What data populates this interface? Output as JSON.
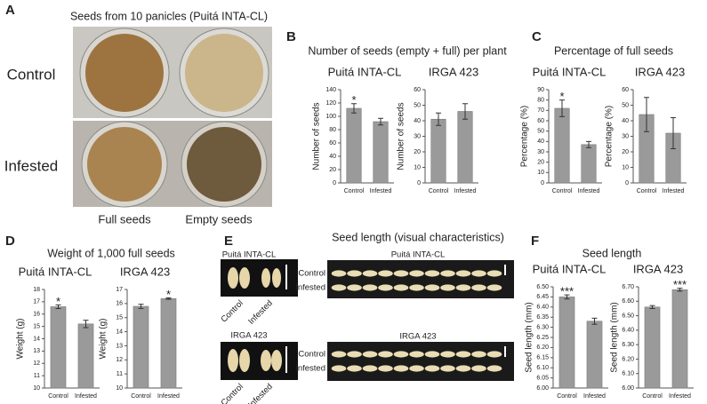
{
  "figure": {
    "panel_a": {
      "letter": "A",
      "title": "Seeds from 10 panicles (Puitá INTA-CL)",
      "rows": [
        "Control",
        "Infested"
      ],
      "columns": [
        "Full seeds",
        "Empty seeds"
      ]
    },
    "panel_b": {
      "letter": "B",
      "title": "Number of seeds (empty + full) per plant"
    },
    "panel_c": {
      "letter": "C",
      "title": "Percentage of full seeds"
    },
    "panel_d": {
      "letter": "D",
      "title": "Weight of 1,000 full seeds"
    },
    "panel_e": {
      "letter": "E",
      "title": "Seed length (visual characteristics)",
      "photos": [
        {
          "title": "Puitá INTA-CL",
          "rows": [
            "Control",
            "Infested"
          ],
          "small_labels": [
            "Control",
            "Infested"
          ]
        },
        {
          "title": "IRGA 423",
          "rows": [
            "Control",
            "Infested"
          ],
          "small_labels": [
            "Control",
            "Infested"
          ]
        }
      ]
    },
    "panel_f": {
      "letter": "F",
      "title": "Seed length"
    }
  },
  "chart_data": [
    {
      "type": "bar",
      "title": "Puitá INTA-CL",
      "ylabel": "Number of seeds",
      "categories": [
        "Control",
        "Infested"
      ],
      "values": [
        112,
        92
      ],
      "errors": [
        7,
        5
      ],
      "stars": [
        "*",
        null
      ],
      "color": "#9a9a9a",
      "ylim": [
        0,
        140
      ],
      "yticks": [
        0,
        20,
        40,
        60,
        80,
        100,
        120,
        140
      ]
    },
    {
      "type": "bar",
      "title": "IRGA 423",
      "ylabel": "Number of seeds",
      "categories": [
        "Control",
        "Infested"
      ],
      "values": [
        41,
        46
      ],
      "errors": [
        4,
        5
      ],
      "stars": [
        null,
        null
      ],
      "color": "#9a9a9a",
      "ylim": [
        0,
        60
      ],
      "yticks": [
        0,
        10,
        20,
        30,
        40,
        50,
        60
      ]
    },
    {
      "type": "bar",
      "title": "Puitá INTA-CL",
      "ylabel": "Percentage (%)",
      "categories": [
        "Control",
        "Infested"
      ],
      "values": [
        72,
        37
      ],
      "errors": [
        8,
        3
      ],
      "stars": [
        "*",
        null
      ],
      "color": "#9a9a9a",
      "ylim": [
        0,
        90
      ],
      "yticks": [
        0,
        10,
        20,
        30,
        40,
        50,
        60,
        70,
        80,
        90
      ]
    },
    {
      "type": "bar",
      "title": "IRGA 423",
      "ylabel": "Percentage (%)",
      "categories": [
        "Control",
        "Infested"
      ],
      "values": [
        44,
        32
      ],
      "errors": [
        11,
        10
      ],
      "stars": [
        null,
        null
      ],
      "color": "#9a9a9a",
      "ylim": [
        0,
        60
      ],
      "yticks": [
        0,
        10,
        20,
        30,
        40,
        50,
        60
      ]
    },
    {
      "type": "bar",
      "title": "Puitá INTA-CL",
      "ylabel": "Weight (g)",
      "categories": [
        "Control",
        "Infested"
      ],
      "values": [
        16.6,
        15.2
      ],
      "errors": [
        0.15,
        0.3
      ],
      "stars": [
        "*",
        null
      ],
      "color": "#9a9a9a",
      "ylim": [
        10,
        18
      ],
      "yticks": [
        10,
        11,
        12,
        13,
        14,
        15,
        16,
        17,
        18
      ]
    },
    {
      "type": "bar",
      "title": "IRGA 423",
      "ylabel": "Weight (g)",
      "categories": [
        "Control",
        "Infested"
      ],
      "values": [
        15.8,
        16.35
      ],
      "errors": [
        0.15,
        0.05
      ],
      "stars": [
        null,
        "*"
      ],
      "color": "#9a9a9a",
      "ylim": [
        10,
        17
      ],
      "yticks": [
        10,
        11,
        12,
        13,
        14,
        15,
        16,
        17
      ]
    },
    {
      "type": "bar",
      "title": "Puitá INTA-CL",
      "ylabel": "Seed length (mm)",
      "categories": [
        "Control",
        "Infested"
      ],
      "values": [
        6.45,
        6.33
      ],
      "errors": [
        0.01,
        0.015
      ],
      "stars": [
        "***",
        null
      ],
      "color": "#9a9a9a",
      "ylim": [
        6,
        6.5
      ],
      "yticks": [
        {
          "value": 6,
          "label": "6.00"
        },
        6.05,
        {
          "value": 6.1,
          "label": "6.10"
        },
        6.15,
        {
          "value": 6.2,
          "label": "6.20"
        },
        6.25,
        {
          "value": 6.3,
          "label": "6.30"
        },
        6.35,
        {
          "value": 6.4,
          "label": "6.40"
        },
        6.45,
        {
          "value": 6.5,
          "label": "6.50"
        }
      ]
    },
    {
      "type": "bar",
      "title": "IRGA 423",
      "ylabel": "Seed length (mm)",
      "categories": [
        "Control",
        "Infested"
      ],
      "values": [
        6.56,
        6.68
      ],
      "errors": [
        0.01,
        0.01
      ],
      "stars": [
        null,
        "***"
      ],
      "color": "#9a9a9a",
      "ylim": [
        6,
        6.7
      ],
      "yticks": [
        {
          "value": 6,
          "label": "6.00"
        },
        {
          "value": 6.1,
          "label": "6.10"
        },
        {
          "value": 6.2,
          "label": "6.20"
        },
        {
          "value": 6.3,
          "label": "6.30"
        },
        {
          "value": 6.4,
          "label": "6.40"
        },
        {
          "value": 6.5,
          "label": "6.50"
        },
        {
          "value": 6.6,
          "label": "6.60"
        },
        {
          "value": 6.7,
          "label": "6.70"
        }
      ]
    }
  ]
}
